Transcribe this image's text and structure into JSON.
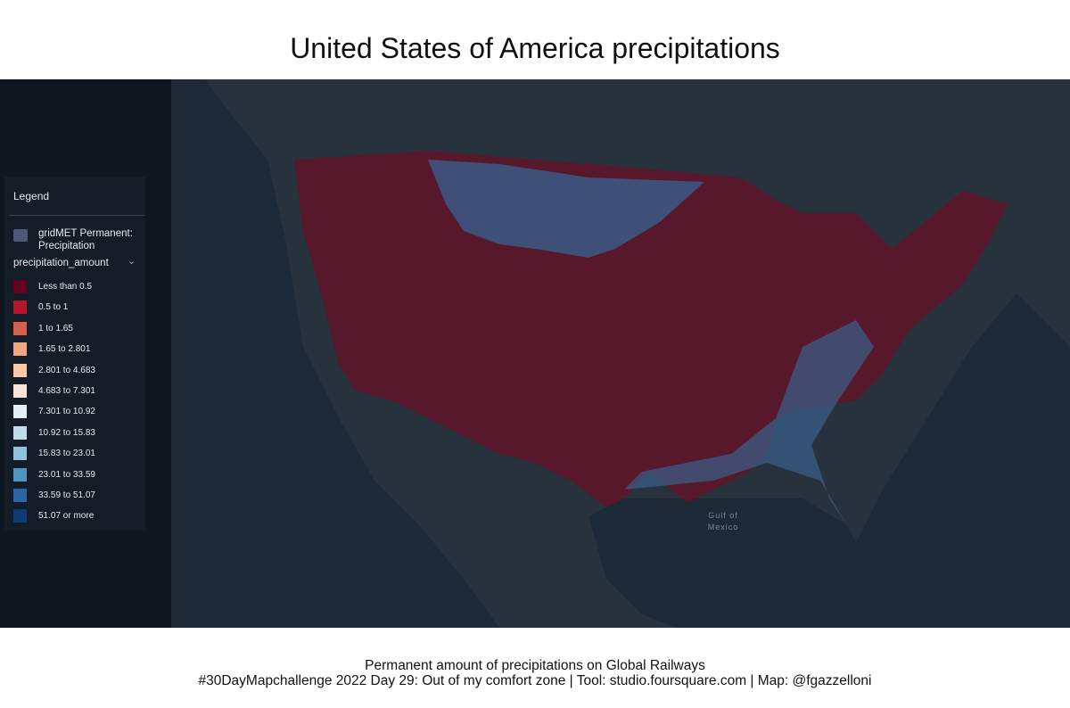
{
  "title": "United States of America precipitations",
  "legend": {
    "heading": "Legend",
    "layer": "gridMET Permanent: Precipitation",
    "field": "precipitation_amount",
    "items": [
      {
        "label": "Less than 0.5",
        "color": "#67001f"
      },
      {
        "label": "0.5 to 1",
        "color": "#b2182b"
      },
      {
        "label": "1 to 1.65",
        "color": "#d6604d"
      },
      {
        "label": "1.65 to 2.801",
        "color": "#f4a582"
      },
      {
        "label": "2.801 to 4.683",
        "color": "#fdc7a8"
      },
      {
        "label": "4.683 to 7.301",
        "color": "#fbe4d8"
      },
      {
        "label": "7.301 to 10.92",
        "color": "#e3eef5"
      },
      {
        "label": "10.92 to 15.83",
        "color": "#c3dcec"
      },
      {
        "label": "15.83 to 23.01",
        "color": "#8fc2de"
      },
      {
        "label": "23.01 to 33.59",
        "color": "#4e94c4"
      },
      {
        "label": "33.59 to 51.07",
        "color": "#2866a8"
      },
      {
        "label": "51.07 or more",
        "color": "#0d3d75"
      }
    ]
  },
  "map": {
    "labels": [
      "Gulf of Mexico"
    ]
  },
  "footer": [
    "Permanent amount of precipitations on Global Railways",
    "#30DayMapchallenge 2022 Day 29: Out of my comfort zone | Tool: studio.foursquare.com | Map: @fgazzelloni"
  ]
}
